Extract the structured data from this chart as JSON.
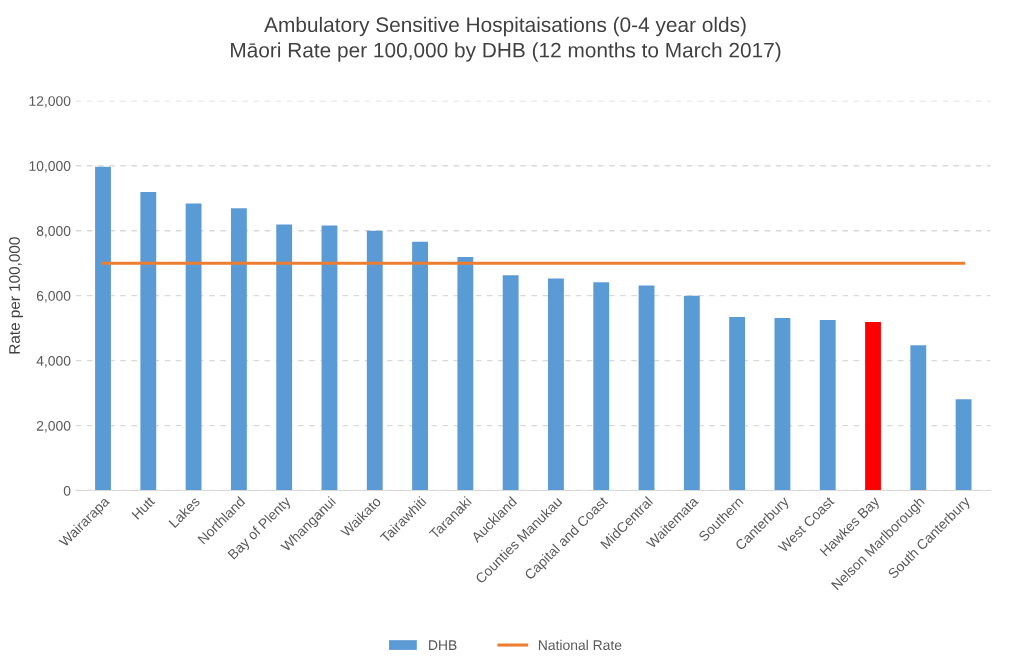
{
  "chart_data": {
    "type": "bar",
    "title": "Ambulatory Sensitive Hospitaisations (0-4 year olds)\nMāori Rate per 100,000 by DHB (12 months to March 2017)",
    "ylabel": "Rate per 100,000",
    "categories": [
      "Wairarapa",
      "Hutt",
      "Lakes",
      "Northland",
      "Bay of Plenty",
      "Whanganui",
      "Waikato",
      "Tairawhiti",
      "Taranaki",
      "Auckland",
      "Counties Manukau",
      "Capital and Coast",
      "MidCentral",
      "Waitemata",
      "Southern",
      "Canterbury",
      "West Coast",
      "Hawkes Bay",
      "Nelson Marlborough",
      "South Canterbury"
    ],
    "series": [
      {
        "name": "DHB",
        "color": "#5b9bd5",
        "colors": [
          "#5b9bd5",
          "#5b9bd5",
          "#5b9bd5",
          "#5b9bd5",
          "#5b9bd5",
          "#5b9bd5",
          "#5b9bd5",
          "#5b9bd5",
          "#5b9bd5",
          "#5b9bd5",
          "#5b9bd5",
          "#5b9bd5",
          "#5b9bd5",
          "#5b9bd5",
          "#5b9bd5",
          "#5b9bd5",
          "#5b9bd5",
          "#ff0000",
          "#5b9bd5",
          "#5b9bd5"
        ],
        "values": [
          9970,
          9190,
          8840,
          8690,
          8190,
          8160,
          8000,
          7660,
          7190,
          6630,
          6530,
          6410,
          6310,
          6000,
          5340,
          5310,
          5250,
          5190,
          4470,
          2810
        ]
      },
      {
        "name": "National Rate",
        "type": "line",
        "color": "#ed7d31",
        "values": [
          7000,
          7000,
          7000,
          7000,
          7000,
          7000,
          7000,
          7000,
          7000,
          7000,
          7000,
          7000,
          7000,
          7000,
          7000,
          7000,
          7000,
          7000,
          7000,
          7000
        ]
      }
    ],
    "ylim": [
      0,
      12000
    ],
    "yticks": [
      0,
      {
        "value": 2000,
        "label": "2,000"
      },
      {
        "value": 4000,
        "label": "4,000"
      },
      {
        "value": 6000,
        "label": "6,000"
      },
      {
        "value": 8000,
        "label": "8,000"
      },
      {
        "value": 10000,
        "label": "10,000"
      },
      {
        "value": 12000,
        "label": "12,000"
      }
    ],
    "grid": "y",
    "legend": "bottom"
  }
}
